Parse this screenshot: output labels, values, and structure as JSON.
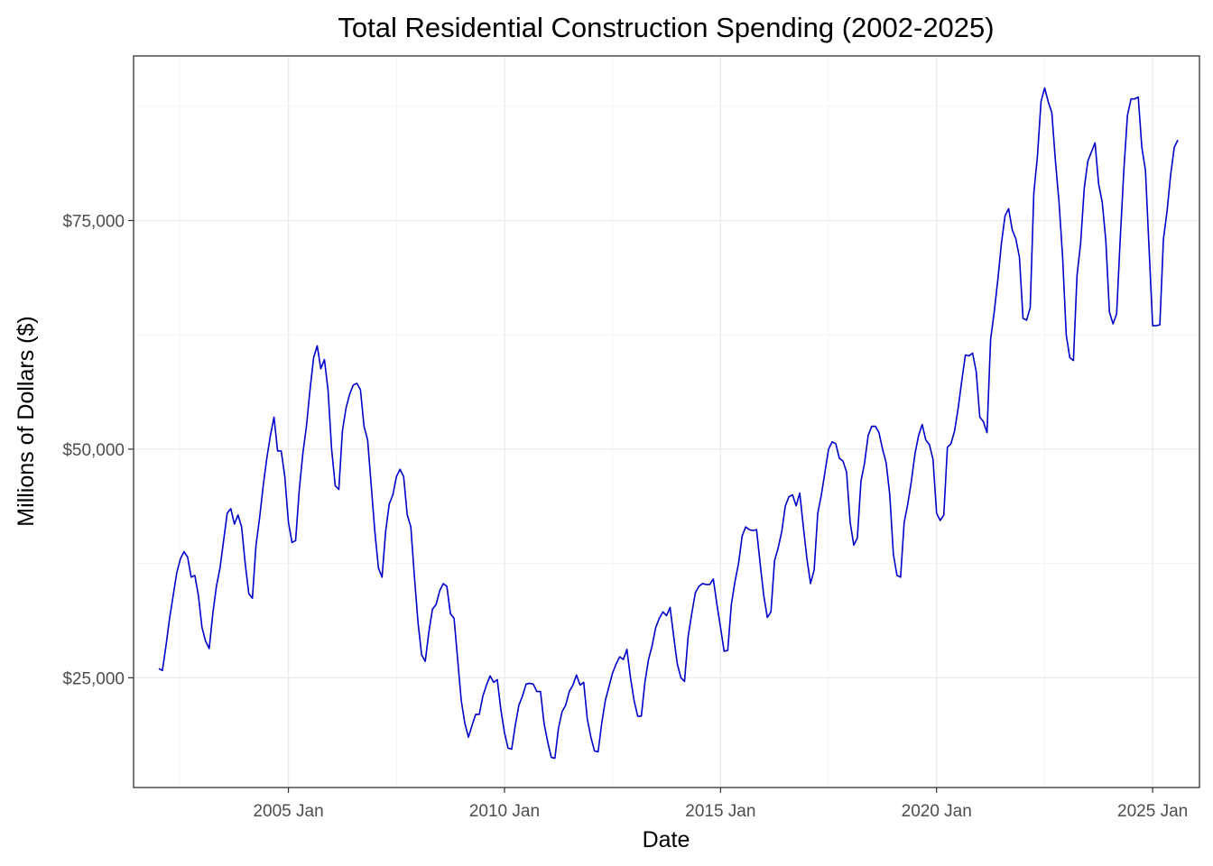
{
  "chart_data": {
    "type": "line",
    "title": "Total Residential Construction Spending (2002-2025)",
    "xlabel": "Date",
    "ylabel": "Millions of Dollars ($)",
    "x_ticks": [
      {
        "date": "2005-01",
        "label": "2005 Jan"
      },
      {
        "date": "2010-01",
        "label": "2010 Jan"
      },
      {
        "date": "2015-01",
        "label": "2015 Jan"
      },
      {
        "date": "2020-01",
        "label": "2020 Jan"
      },
      {
        "date": "2025-01",
        "label": "2025 Jan"
      }
    ],
    "y_ticks": [
      {
        "value": 25000,
        "label": "$25,000"
      },
      {
        "value": 50000,
        "label": "$50,000"
      },
      {
        "value": 75000,
        "label": "$75,000"
      }
    ],
    "xlim": [
      "2001-06",
      "2026-02"
    ],
    "ylim": [
      13000,
      93000
    ],
    "grid": true,
    "legend": "none",
    "colors": {
      "series": "#0000CD"
    },
    "series": [
      {
        "points": [
          [
            "2002-01",
            26000
          ],
          [
            "2002-02",
            25800
          ],
          [
            "2002-03",
            28500
          ],
          [
            "2002-04",
            31500
          ],
          [
            "2002-05",
            34000
          ],
          [
            "2002-06",
            36500
          ],
          [
            "2002-07",
            38000
          ],
          [
            "2002-08",
            38800
          ],
          [
            "2002-09",
            38200
          ],
          [
            "2002-10",
            36000
          ],
          [
            "2002-11",
            36200
          ],
          [
            "2002-12",
            34000
          ],
          [
            "2003-01",
            30500
          ],
          [
            "2003-02",
            29000
          ],
          [
            "2003-03",
            28200
          ],
          [
            "2003-04",
            32000
          ],
          [
            "2003-05",
            35000
          ],
          [
            "2003-06",
            37000
          ],
          [
            "2003-07",
            40000
          ],
          [
            "2003-08",
            43000
          ],
          [
            "2003-09",
            43500
          ],
          [
            "2003-10",
            41800
          ],
          [
            "2003-11",
            42800
          ],
          [
            "2003-12",
            41500
          ],
          [
            "2004-01",
            37500
          ],
          [
            "2004-02",
            34200
          ],
          [
            "2004-03",
            33700
          ],
          [
            "2004-04",
            39500
          ],
          [
            "2004-05",
            42500
          ],
          [
            "2004-06",
            46000
          ],
          [
            "2004-07",
            49000
          ],
          [
            "2004-08",
            51500
          ],
          [
            "2004-09",
            53500
          ],
          [
            "2004-10",
            49800
          ],
          [
            "2004-11",
            49800
          ],
          [
            "2004-12",
            47000
          ],
          [
            "2005-01",
            42000
          ],
          [
            "2005-02",
            39800
          ],
          [
            "2005-03",
            40000
          ],
          [
            "2005-04",
            45500
          ],
          [
            "2005-05",
            49500
          ],
          [
            "2005-06",
            52500
          ],
          [
            "2005-07",
            56500
          ],
          [
            "2005-08",
            60000
          ],
          [
            "2005-09",
            61300
          ],
          [
            "2005-10",
            58800
          ],
          [
            "2005-11",
            59800
          ],
          [
            "2005-12",
            56500
          ],
          [
            "2006-01",
            50000
          ],
          [
            "2006-02",
            46000
          ],
          [
            "2006-03",
            45600
          ],
          [
            "2006-04",
            52000
          ],
          [
            "2006-05",
            54500
          ],
          [
            "2006-06",
            56000
          ],
          [
            "2006-07",
            57000
          ],
          [
            "2006-08",
            57200
          ],
          [
            "2006-09",
            56500
          ],
          [
            "2006-10",
            52500
          ],
          [
            "2006-11",
            51000
          ],
          [
            "2006-12",
            46000
          ],
          [
            "2007-01",
            41000
          ],
          [
            "2007-02",
            37000
          ],
          [
            "2007-03",
            36000
          ],
          [
            "2007-04",
            41000
          ],
          [
            "2007-05",
            44000
          ],
          [
            "2007-06",
            45000
          ],
          [
            "2007-07",
            47000
          ],
          [
            "2007-08",
            47800
          ],
          [
            "2007-09",
            47000
          ],
          [
            "2007-10",
            42800
          ],
          [
            "2007-11",
            41500
          ],
          [
            "2007-12",
            36000
          ],
          [
            "2008-01",
            31000
          ],
          [
            "2008-02",
            27500
          ],
          [
            "2008-03",
            26800
          ],
          [
            "2008-04",
            30000
          ],
          [
            "2008-05",
            32500
          ],
          [
            "2008-06",
            33000
          ],
          [
            "2008-07",
            34500
          ],
          [
            "2008-08",
            35300
          ],
          [
            "2008-09",
            35000
          ],
          [
            "2008-10",
            32000
          ],
          [
            "2008-11",
            31500
          ],
          [
            "2008-12",
            27000
          ],
          [
            "2009-01",
            22500
          ],
          [
            "2009-02",
            20000
          ],
          [
            "2009-03",
            18500
          ],
          [
            "2009-04",
            19800
          ],
          [
            "2009-05",
            21000
          ],
          [
            "2009-06",
            21000
          ],
          [
            "2009-07",
            23000
          ],
          [
            "2009-08",
            24200
          ],
          [
            "2009-09",
            25200
          ],
          [
            "2009-10",
            24500
          ],
          [
            "2009-11",
            24800
          ],
          [
            "2009-12",
            21500
          ],
          [
            "2010-01",
            19000
          ],
          [
            "2010-02",
            17300
          ],
          [
            "2010-03",
            17200
          ],
          [
            "2010-04",
            19800
          ],
          [
            "2010-05",
            22000
          ],
          [
            "2010-06",
            23000
          ],
          [
            "2010-07",
            24300
          ],
          [
            "2010-08",
            24400
          ],
          [
            "2010-09",
            24300
          ],
          [
            "2010-10",
            23500
          ],
          [
            "2010-11",
            23500
          ],
          [
            "2010-12",
            20000
          ],
          [
            "2011-01",
            18000
          ],
          [
            "2011-02",
            16300
          ],
          [
            "2011-03",
            16200
          ],
          [
            "2011-04",
            19500
          ],
          [
            "2011-05",
            21300
          ],
          [
            "2011-06",
            22000
          ],
          [
            "2011-07",
            23500
          ],
          [
            "2011-08",
            24200
          ],
          [
            "2011-09",
            25300
          ],
          [
            "2011-10",
            24200
          ],
          [
            "2011-11",
            24500
          ],
          [
            "2011-12",
            20500
          ],
          [
            "2012-01",
            18500
          ],
          [
            "2012-02",
            17000
          ],
          [
            "2012-03",
            16900
          ],
          [
            "2012-04",
            20000
          ],
          [
            "2012-05",
            22500
          ],
          [
            "2012-06",
            24000
          ],
          [
            "2012-07",
            25500
          ],
          [
            "2012-08",
            26500
          ],
          [
            "2012-09",
            27300
          ],
          [
            "2012-10",
            27000
          ],
          [
            "2012-11",
            28100
          ],
          [
            "2012-12",
            25000
          ],
          [
            "2013-01",
            22500
          ],
          [
            "2013-02",
            20800
          ],
          [
            "2013-03",
            20800
          ],
          [
            "2013-04",
            24500
          ],
          [
            "2013-05",
            27000
          ],
          [
            "2013-06",
            28500
          ],
          [
            "2013-07",
            30500
          ],
          [
            "2013-08",
            31500
          ],
          [
            "2013-09",
            32200
          ],
          [
            "2013-10",
            31800
          ],
          [
            "2013-11",
            32700
          ],
          [
            "2013-12",
            29500
          ],
          [
            "2014-01",
            26500
          ],
          [
            "2014-02",
            25000
          ],
          [
            "2014-03",
            24600
          ],
          [
            "2014-04",
            29500
          ],
          [
            "2014-05",
            32000
          ],
          [
            "2014-06",
            34300
          ],
          [
            "2014-07",
            35000
          ],
          [
            "2014-08",
            35300
          ],
          [
            "2014-09",
            35200
          ],
          [
            "2014-10",
            35200
          ],
          [
            "2014-11",
            35800
          ],
          [
            "2014-12",
            33000
          ],
          [
            "2015-01",
            30500
          ],
          [
            "2015-02",
            27900
          ],
          [
            "2015-03",
            28000
          ],
          [
            "2015-04",
            33000
          ],
          [
            "2015-05",
            35500
          ],
          [
            "2015-06",
            37500
          ],
          [
            "2015-07",
            40500
          ],
          [
            "2015-08",
            41500
          ],
          [
            "2015-09",
            41200
          ],
          [
            "2015-10",
            41100
          ],
          [
            "2015-11",
            41200
          ],
          [
            "2015-12",
            37500
          ],
          [
            "2016-01",
            34000
          ],
          [
            "2016-02",
            31600
          ],
          [
            "2016-03",
            32200
          ],
          [
            "2016-04",
            37800
          ],
          [
            "2016-05",
            39200
          ],
          [
            "2016-06",
            41000
          ],
          [
            "2016-07",
            43800
          ],
          [
            "2016-08",
            44800
          ],
          [
            "2016-09",
            45000
          ],
          [
            "2016-10",
            43800
          ],
          [
            "2016-11",
            45200
          ],
          [
            "2016-12",
            41500
          ],
          [
            "2017-01",
            38000
          ],
          [
            "2017-02",
            35300
          ],
          [
            "2017-03",
            36800
          ],
          [
            "2017-04",
            43000
          ],
          [
            "2017-05",
            45000
          ],
          [
            "2017-06",
            47500
          ],
          [
            "2017-07",
            50000
          ],
          [
            "2017-08",
            50800
          ],
          [
            "2017-09",
            50600
          ],
          [
            "2017-10",
            49000
          ],
          [
            "2017-11",
            48700
          ],
          [
            "2017-12",
            47500
          ],
          [
            "2018-01",
            42000
          ],
          [
            "2018-02",
            39500
          ],
          [
            "2018-03",
            40300
          ],
          [
            "2018-04",
            46500
          ],
          [
            "2018-05",
            48500
          ],
          [
            "2018-06",
            51500
          ],
          [
            "2018-07",
            52500
          ],
          [
            "2018-08",
            52500
          ],
          [
            "2018-09",
            51800
          ],
          [
            "2018-10",
            50000
          ],
          [
            "2018-11",
            48500
          ],
          [
            "2018-12",
            45000
          ],
          [
            "2019-01",
            38500
          ],
          [
            "2019-02",
            36200
          ],
          [
            "2019-03",
            36000
          ],
          [
            "2019-04",
            42000
          ],
          [
            "2019-05",
            44000
          ],
          [
            "2019-06",
            46500
          ],
          [
            "2019-07",
            49500
          ],
          [
            "2019-08",
            51500
          ],
          [
            "2019-09",
            52700
          ],
          [
            "2019-10",
            51000
          ],
          [
            "2019-11",
            50500
          ],
          [
            "2019-12",
            48900
          ],
          [
            "2020-01",
            43000
          ],
          [
            "2020-02",
            42200
          ],
          [
            "2020-03",
            42800
          ],
          [
            "2020-04",
            50200
          ],
          [
            "2020-05",
            50600
          ],
          [
            "2020-06",
            52000
          ],
          [
            "2020-07",
            54500
          ],
          [
            "2020-08",
            57500
          ],
          [
            "2020-09",
            60300
          ],
          [
            "2020-10",
            60200
          ],
          [
            "2020-11",
            60500
          ],
          [
            "2020-12",
            58500
          ],
          [
            "2021-01",
            53500
          ],
          [
            "2021-02",
            53000
          ],
          [
            "2021-03",
            51800
          ],
          [
            "2021-04",
            62000
          ],
          [
            "2021-05",
            65000
          ],
          [
            "2021-06",
            68500
          ],
          [
            "2021-07",
            72500
          ],
          [
            "2021-08",
            75500
          ],
          [
            "2021-09",
            76300
          ],
          [
            "2021-10",
            74000
          ],
          [
            "2021-11",
            73000
          ],
          [
            "2021-12",
            71000
          ],
          [
            "2022-01",
            64300
          ],
          [
            "2022-02",
            64100
          ],
          [
            "2022-03",
            65500
          ],
          [
            "2022-04",
            78000
          ],
          [
            "2022-05",
            82000
          ],
          [
            "2022-06",
            88000
          ],
          [
            "2022-07",
            89500
          ],
          [
            "2022-08",
            88000
          ],
          [
            "2022-09",
            86800
          ],
          [
            "2022-10",
            81500
          ],
          [
            "2022-11",
            77000
          ],
          [
            "2022-12",
            71000
          ],
          [
            "2023-01",
            62500
          ],
          [
            "2023-02",
            60000
          ],
          [
            "2023-03",
            59700
          ],
          [
            "2023-04",
            69000
          ],
          [
            "2023-05",
            72500
          ],
          [
            "2023-06",
            78500
          ],
          [
            "2023-07",
            81500
          ],
          [
            "2023-08",
            82500
          ],
          [
            "2023-09",
            83500
          ],
          [
            "2023-10",
            79000
          ],
          [
            "2023-11",
            77000
          ],
          [
            "2023-12",
            72800
          ],
          [
            "2024-01",
            65000
          ],
          [
            "2024-02",
            63700
          ],
          [
            "2024-03",
            64800
          ],
          [
            "2024-04",
            73000
          ],
          [
            "2024-05",
            80500
          ],
          [
            "2024-06",
            86500
          ],
          [
            "2024-07",
            88300
          ],
          [
            "2024-08",
            88300
          ],
          [
            "2024-09",
            88500
          ],
          [
            "2024-10",
            83000
          ],
          [
            "2024-11",
            80500
          ],
          [
            "2024-12",
            72000
          ],
          [
            "2025-01",
            63500
          ],
          [
            "2025-02",
            63500
          ],
          [
            "2025-03",
            63600
          ],
          [
            "2025-04",
            73000
          ],
          [
            "2025-05",
            76000
          ],
          [
            "2025-06",
            80000
          ],
          [
            "2025-07",
            83000
          ],
          [
            "2025-08",
            83800
          ]
        ]
      }
    ]
  }
}
